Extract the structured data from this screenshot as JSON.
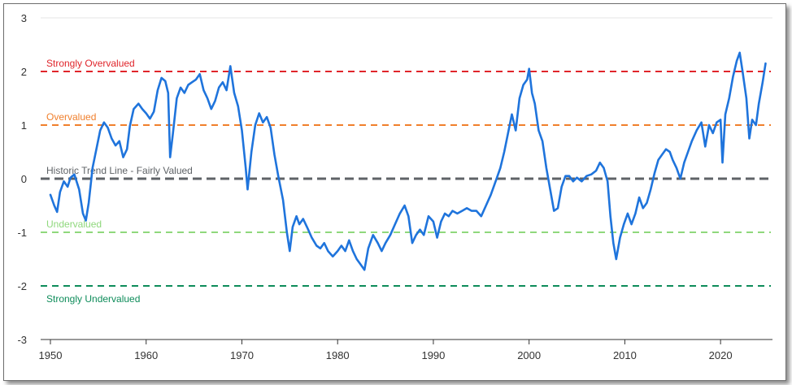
{
  "chart_data": {
    "type": "line",
    "title": "",
    "xlabel": "",
    "ylabel": "",
    "xlim": [
      1950,
      2025
    ],
    "ylim": [
      -3,
      3
    ],
    "x_ticks": [
      "1950",
      "1960",
      "1970",
      "1980",
      "1990",
      "2000",
      "2010",
      "2020"
    ],
    "y_ticks": [
      "3",
      "2",
      "1",
      "0",
      "-1",
      "-2",
      "-3"
    ],
    "grid": "horizontal-top-only",
    "legend": "none",
    "reference_lines": [
      {
        "value": 2,
        "label": "Strongly Overvalued",
        "color": "#e0252b"
      },
      {
        "value": 1,
        "label": "Overvalued",
        "color": "#f07f2c"
      },
      {
        "value": 0,
        "label": "Historic Trend Line - Fairly Valued",
        "color": "#5f6367"
      },
      {
        "value": -1,
        "label": "Undervalued",
        "color": "#8fd87c"
      },
      {
        "value": -2,
        "label": "Strongly Undervalued",
        "color": "#0e8c5a"
      }
    ],
    "series": [
      {
        "color": "#1f74dc",
        "points": [
          [
            1950.0,
            -0.3
          ],
          [
            1950.4,
            -0.5
          ],
          [
            1950.7,
            -0.62
          ],
          [
            1951.0,
            -0.25
          ],
          [
            1951.4,
            -0.05
          ],
          [
            1951.8,
            -0.15
          ],
          [
            1952.1,
            0.02
          ],
          [
            1952.5,
            0.08
          ],
          [
            1953.0,
            -0.2
          ],
          [
            1953.4,
            -0.65
          ],
          [
            1953.7,
            -0.78
          ],
          [
            1954.0,
            -0.45
          ],
          [
            1954.4,
            0.2
          ],
          [
            1954.8,
            0.55
          ],
          [
            1955.2,
            0.9
          ],
          [
            1955.6,
            1.05
          ],
          [
            1956.0,
            0.95
          ],
          [
            1956.4,
            0.75
          ],
          [
            1956.8,
            0.62
          ],
          [
            1957.2,
            0.7
          ],
          [
            1957.6,
            0.4
          ],
          [
            1958.0,
            0.55
          ],
          [
            1958.3,
            0.98
          ],
          [
            1958.7,
            1.3
          ],
          [
            1959.2,
            1.4
          ],
          [
            1959.6,
            1.3
          ],
          [
            1960.0,
            1.22
          ],
          [
            1960.4,
            1.12
          ],
          [
            1960.8,
            1.25
          ],
          [
            1961.2,
            1.65
          ],
          [
            1961.6,
            1.88
          ],
          [
            1962.0,
            1.82
          ],
          [
            1962.3,
            1.6
          ],
          [
            1962.5,
            0.4
          ],
          [
            1962.8,
            0.85
          ],
          [
            1963.2,
            1.5
          ],
          [
            1963.6,
            1.7
          ],
          [
            1964.0,
            1.6
          ],
          [
            1964.4,
            1.75
          ],
          [
            1964.8,
            1.8
          ],
          [
            1965.2,
            1.85
          ],
          [
            1965.6,
            1.95
          ],
          [
            1966.0,
            1.65
          ],
          [
            1966.4,
            1.5
          ],
          [
            1966.8,
            1.3
          ],
          [
            1967.2,
            1.45
          ],
          [
            1967.6,
            1.7
          ],
          [
            1968.0,
            1.8
          ],
          [
            1968.4,
            1.65
          ],
          [
            1968.8,
            2.1
          ],
          [
            1969.2,
            1.6
          ],
          [
            1969.6,
            1.35
          ],
          [
            1970.0,
            0.9
          ],
          [
            1970.4,
            0.2
          ],
          [
            1970.6,
            -0.2
          ],
          [
            1971.0,
            0.5
          ],
          [
            1971.4,
            1.0
          ],
          [
            1971.8,
            1.22
          ],
          [
            1972.2,
            1.05
          ],
          [
            1972.6,
            1.15
          ],
          [
            1973.0,
            0.95
          ],
          [
            1973.4,
            0.45
          ],
          [
            1973.8,
            0.05
          ],
          [
            1974.3,
            -0.4
          ],
          [
            1974.7,
            -1.0
          ],
          [
            1975.0,
            -1.35
          ],
          [
            1975.3,
            -0.9
          ],
          [
            1975.7,
            -0.7
          ],
          [
            1976.0,
            -0.85
          ],
          [
            1976.4,
            -0.75
          ],
          [
            1976.8,
            -0.9
          ],
          [
            1977.3,
            -1.1
          ],
          [
            1977.8,
            -1.25
          ],
          [
            1978.2,
            -1.3
          ],
          [
            1978.6,
            -1.2
          ],
          [
            1979.0,
            -1.35
          ],
          [
            1979.5,
            -1.45
          ],
          [
            1980.0,
            -1.35
          ],
          [
            1980.4,
            -1.25
          ],
          [
            1980.8,
            -1.35
          ],
          [
            1981.2,
            -1.15
          ],
          [
            1981.6,
            -1.35
          ],
          [
            1982.0,
            -1.5
          ],
          [
            1982.4,
            -1.6
          ],
          [
            1982.8,
            -1.7
          ],
          [
            1983.2,
            -1.3
          ],
          [
            1983.7,
            -1.05
          ],
          [
            1984.2,
            -1.2
          ],
          [
            1984.6,
            -1.35
          ],
          [
            1985.0,
            -1.2
          ],
          [
            1985.5,
            -1.05
          ],
          [
            1986.0,
            -0.85
          ],
          [
            1986.5,
            -0.65
          ],
          [
            1987.0,
            -0.5
          ],
          [
            1987.4,
            -0.7
          ],
          [
            1987.8,
            -1.2
          ],
          [
            1988.2,
            -1.05
          ],
          [
            1988.6,
            -0.95
          ],
          [
            1989.0,
            -1.05
          ],
          [
            1989.5,
            -0.7
          ],
          [
            1990.0,
            -0.8
          ],
          [
            1990.4,
            -1.1
          ],
          [
            1990.8,
            -0.8
          ],
          [
            1991.2,
            -0.65
          ],
          [
            1991.6,
            -0.7
          ],
          [
            1992.0,
            -0.6
          ],
          [
            1992.5,
            -0.65
          ],
          [
            1993.0,
            -0.6
          ],
          [
            1993.5,
            -0.55
          ],
          [
            1994.0,
            -0.6
          ],
          [
            1994.5,
            -0.6
          ],
          [
            1995.0,
            -0.7
          ],
          [
            1995.5,
            -0.5
          ],
          [
            1996.0,
            -0.3
          ],
          [
            1996.5,
            -0.05
          ],
          [
            1997.0,
            0.2
          ],
          [
            1997.4,
            0.5
          ],
          [
            1997.8,
            0.85
          ],
          [
            1998.2,
            1.2
          ],
          [
            1998.6,
            0.9
          ],
          [
            1999.0,
            1.5
          ],
          [
            1999.4,
            1.75
          ],
          [
            1999.8,
            1.85
          ],
          [
            2000.0,
            2.05
          ],
          [
            2000.3,
            1.6
          ],
          [
            2000.6,
            1.4
          ],
          [
            2001.0,
            0.9
          ],
          [
            2001.4,
            0.7
          ],
          [
            2001.8,
            0.2
          ],
          [
            2002.2,
            -0.2
          ],
          [
            2002.6,
            -0.6
          ],
          [
            2003.0,
            -0.55
          ],
          [
            2003.4,
            -0.15
          ],
          [
            2003.8,
            0.05
          ],
          [
            2004.2,
            0.05
          ],
          [
            2004.6,
            -0.05
          ],
          [
            2005.0,
            0.02
          ],
          [
            2005.5,
            -0.05
          ],
          [
            2006.0,
            0.05
          ],
          [
            2006.5,
            0.08
          ],
          [
            2007.0,
            0.15
          ],
          [
            2007.4,
            0.3
          ],
          [
            2007.8,
            0.2
          ],
          [
            2008.2,
            -0.05
          ],
          [
            2008.5,
            -0.7
          ],
          [
            2008.8,
            -1.2
          ],
          [
            2009.1,
            -1.5
          ],
          [
            2009.5,
            -1.1
          ],
          [
            2009.9,
            -0.85
          ],
          [
            2010.3,
            -0.65
          ],
          [
            2010.7,
            -0.85
          ],
          [
            2011.1,
            -0.65
          ],
          [
            2011.5,
            -0.35
          ],
          [
            2011.9,
            -0.55
          ],
          [
            2012.3,
            -0.45
          ],
          [
            2012.7,
            -0.2
          ],
          [
            2013.1,
            0.1
          ],
          [
            2013.5,
            0.35
          ],
          [
            2013.9,
            0.45
          ],
          [
            2014.3,
            0.55
          ],
          [
            2014.7,
            0.5
          ],
          [
            2015.0,
            0.35
          ],
          [
            2015.4,
            0.2
          ],
          [
            2015.8,
            0.0
          ],
          [
            2016.2,
            0.3
          ],
          [
            2016.6,
            0.5
          ],
          [
            2017.0,
            0.7
          ],
          [
            2017.5,
            0.9
          ],
          [
            2018.0,
            1.05
          ],
          [
            2018.4,
            0.6
          ],
          [
            2018.8,
            1.0
          ],
          [
            2019.2,
            0.85
          ],
          [
            2019.6,
            1.05
          ],
          [
            2020.0,
            1.1
          ],
          [
            2020.2,
            0.3
          ],
          [
            2020.5,
            1.2
          ],
          [
            2020.9,
            1.5
          ],
          [
            2021.3,
            1.9
          ],
          [
            2021.7,
            2.2
          ],
          [
            2022.0,
            2.35
          ],
          [
            2022.3,
            2.0
          ],
          [
            2022.7,
            1.5
          ],
          [
            2023.0,
            0.75
          ],
          [
            2023.3,
            1.1
          ],
          [
            2023.7,
            1.0
          ],
          [
            2024.0,
            1.4
          ],
          [
            2024.4,
            1.8
          ],
          [
            2024.7,
            2.15
          ]
        ]
      }
    ]
  }
}
